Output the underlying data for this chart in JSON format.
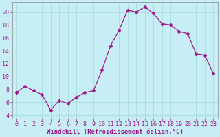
{
  "x": [
    0,
    1,
    2,
    3,
    4,
    5,
    6,
    7,
    8,
    9,
    10,
    11,
    12,
    13,
    14,
    15,
    16,
    17,
    18,
    19,
    20,
    21,
    22,
    23
  ],
  "y": [
    7.5,
    8.5,
    7.8,
    7.2,
    4.8,
    6.3,
    5.8,
    6.8,
    7.5,
    7.8,
    11.0,
    14.8,
    17.2,
    20.3,
    20.0,
    20.8,
    19.8,
    18.2,
    18.0,
    17.0,
    16.7,
    13.5,
    13.3,
    10.5
  ],
  "line_color": "#9b1a8a",
  "marker": "D",
  "marker_size": 2.5,
  "bg_color": "#c8eef5",
  "grid_color": "#aadddd",
  "xlabel": "Windchill (Refroidissement éolien,°C)",
  "xlabel_fontsize": 6.5,
  "tick_fontsize": 6.0,
  "ylim": [
    3.5,
    21.5
  ],
  "yticks": [
    4,
    6,
    8,
    10,
    12,
    14,
    16,
    18,
    20
  ],
  "xticks": [
    0,
    1,
    2,
    3,
    4,
    5,
    6,
    7,
    8,
    9,
    10,
    11,
    12,
    13,
    14,
    15,
    16,
    17,
    18,
    19,
    20,
    21,
    22,
    23
  ],
  "spine_color": "#888888"
}
